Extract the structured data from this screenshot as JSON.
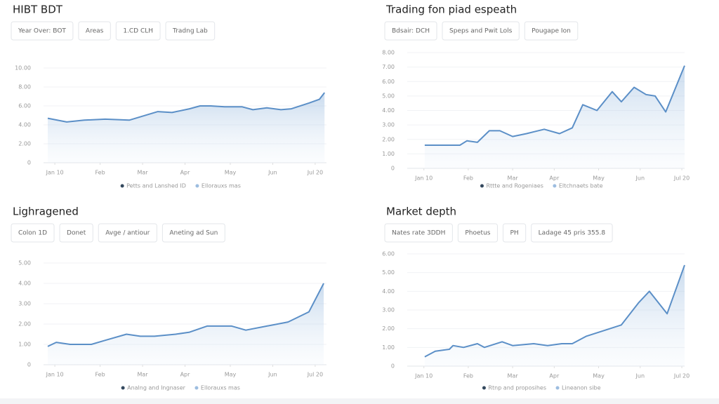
{
  "chart_data": [
    {
      "type": "line",
      "title": "HIBT BDT",
      "controls": [
        "Year Over: BOT",
        "Areas",
        "1.CD CLH",
        "Tradng Lab"
      ],
      "legend": [
        "Petts and Lanshed ID",
        "Ellorauxs mas"
      ],
      "series": [
        {
          "name": "Petts and Lanshed ID",
          "color": "#5b8fc7",
          "x": [
            1.5,
            8.2,
            14.4,
            21.8,
            30.3,
            40.4,
            45.4,
            51.6,
            55.3,
            59.1,
            64,
            70.2,
            74,
            78.9,
            83.9,
            87.6,
            93.8,
            97.5,
            99.3
          ],
          "values": [
            4.7,
            4.3,
            4.5,
            4.6,
            4.5,
            5.4,
            5.3,
            5.7,
            6.0,
            6.0,
            5.9,
            5.9,
            5.6,
            5.8,
            5.6,
            5.7,
            6.3,
            6.7,
            7.4
          ]
        }
      ],
      "xlim": [
        0,
        100
      ],
      "xticks": [
        {
          "value": 4,
          "label": "Jan 10"
        },
        {
          "value": 20,
          "label": "Feb"
        },
        {
          "value": 35,
          "label": "Mar"
        },
        {
          "value": 50,
          "label": "Apr"
        },
        {
          "value": 66,
          "label": "May"
        },
        {
          "value": 81,
          "label": "Jun"
        },
        {
          "value": 96,
          "label": "Jul 20"
        }
      ],
      "ylim": [
        0,
        10
      ],
      "yticks": [
        0,
        {
          "value": 2,
          "label": "2.00"
        },
        {
          "value": 4,
          "label": "4.00"
        },
        {
          "value": 6,
          "label": "6.00"
        },
        {
          "value": 8,
          "label": "8.00"
        },
        {
          "value": 10,
          "label": "10.00"
        }
      ],
      "grid": true
    },
    {
      "type": "line",
      "title": "Trading fon piad espeath",
      "controls": [
        "Bdsair: DCH",
        "Speps and Pwit Lols",
        "Pougape Ion"
      ],
      "legend": [
        "Rttte and Rogeniaes",
        "Eltchnaets bate"
      ],
      "series": [
        {
          "name": "Rttte and Rogeniaes",
          "color": "#5b8fc7",
          "x": [
            6.3,
            19,
            21.5,
            25.3,
            29.6,
            33.4,
            38,
            43,
            49.4,
            54.9,
            59.5,
            63.3,
            68.4,
            73.9,
            77.2,
            81.8,
            86.1,
            89.4,
            93.2,
            100
          ],
          "values": [
            1.6,
            1.6,
            1.9,
            1.8,
            2.6,
            2.6,
            2.2,
            2.4,
            2.7,
            2.4,
            2.8,
            4.4,
            4.0,
            5.3,
            4.6,
            5.6,
            5.1,
            5.0,
            3.9,
            7.1
          ]
        }
      ],
      "xlim": [
        0,
        100
      ],
      "xticks": [
        {
          "value": 6,
          "label": "Jan 10"
        },
        {
          "value": 22,
          "label": "Feb"
        },
        {
          "value": 38,
          "label": "Mar"
        },
        {
          "value": 53,
          "label": "Apr"
        },
        {
          "value": 69,
          "label": "May"
        },
        {
          "value": 84,
          "label": "Jun"
        },
        {
          "value": 99,
          "label": "Jul 20"
        }
      ],
      "ylim": [
        0,
        8
      ],
      "yticks": [
        0,
        {
          "value": 1,
          "label": "1.00"
        },
        {
          "value": 2,
          "label": "2.00"
        },
        {
          "value": 3,
          "label": "3.00"
        },
        {
          "value": 4,
          "label": "4.00"
        },
        {
          "value": 5,
          "label": "5.00"
        },
        {
          "value": 6,
          "label": "6.00"
        },
        {
          "value": 7,
          "label": "7.00"
        },
        {
          "value": 8,
          "label": "8.00"
        }
      ],
      "grid": true
    },
    {
      "type": "line",
      "title": "Lighragened",
      "controls": [
        "Colon 1D",
        "Donet",
        "Avge / antiour",
        "Aneting ad Sun"
      ],
      "legend": [
        "Analng and Ingnaser",
        "Ellorauxs mas"
      ],
      "series": [
        {
          "name": "Analng and Ingnaser",
          "color": "#5b8fc7",
          "x": [
            1.5,
            4.5,
            9.4,
            16.9,
            21.8,
            29.3,
            34.2,
            39.2,
            46.7,
            51.6,
            57.8,
            66.5,
            71.5,
            78.9,
            86.4,
            93.8,
            99
          ],
          "values": [
            0.9,
            1.1,
            1.0,
            1.0,
            1.2,
            1.5,
            1.4,
            1.4,
            1.5,
            1.6,
            1.9,
            1.9,
            1.7,
            1.9,
            2.1,
            2.6,
            4.0
          ]
        }
      ],
      "xlim": [
        0,
        100
      ],
      "xticks": [
        {
          "value": 4,
          "label": "Jan 10"
        },
        {
          "value": 20,
          "label": "Feb"
        },
        {
          "value": 35,
          "label": "Mar"
        },
        {
          "value": 50,
          "label": "Apr"
        },
        {
          "value": 66,
          "label": "May"
        },
        {
          "value": 81,
          "label": "Jun"
        },
        {
          "value": 96,
          "label": "Jul 20"
        }
      ],
      "ylim": [
        0,
        5
      ],
      "yticks": [
        0,
        {
          "value": 1,
          "label": "1.00"
        },
        {
          "value": 2,
          "label": "2.00"
        },
        {
          "value": 3,
          "label": "3.00"
        },
        {
          "value": 4,
          "label": "4.00"
        },
        {
          "value": 5,
          "label": "5.00"
        }
      ],
      "grid": true
    },
    {
      "type": "line",
      "title": "Market depth",
      "controls": [
        "Nates rate 3DDH",
        "Phoetus",
        "PH",
        "Ladage 45 pris 355.8"
      ],
      "legend": [
        "Rtnp and proposihes",
        "Lineanon sibe"
      ],
      "series": [
        {
          "name": "Rtnp and proposihes",
          "color": "#5b8fc7",
          "x": [
            6.3,
            10.1,
            15.2,
            16.5,
            20.3,
            25.3,
            27.8,
            34.2,
            38,
            45.6,
            50.6,
            55.7,
            59.5,
            64.6,
            70.9,
            77.2,
            83.5,
            87.3,
            93.7,
            100
          ],
          "values": [
            0.5,
            0.8,
            0.9,
            1.1,
            1.0,
            1.2,
            1.0,
            1.3,
            1.1,
            1.2,
            1.1,
            1.2,
            1.2,
            1.6,
            1.9,
            2.2,
            3.4,
            4.0,
            2.8,
            5.4
          ]
        }
      ],
      "xlim": [
        0,
        100
      ],
      "xticks": [
        {
          "value": 6,
          "label": "Jan 10"
        },
        {
          "value": 22,
          "label": "Feb"
        },
        {
          "value": 38,
          "label": "Mar"
        },
        {
          "value": 53,
          "label": "Apr"
        },
        {
          "value": 69,
          "label": "May"
        },
        {
          "value": 84,
          "label": "Jun"
        },
        {
          "value": 99,
          "label": "Jul 20"
        }
      ],
      "ylim": [
        0,
        6
      ],
      "yticks": [
        0,
        {
          "value": 1,
          "label": "1.00"
        },
        {
          "value": 2,
          "label": "2.00"
        },
        {
          "value": 3,
          "label": "3.00"
        },
        {
          "value": 4,
          "label": "4.00"
        },
        {
          "value": 5,
          "label": "5.00"
        },
        {
          "value": 6,
          "label": "6.00"
        }
      ],
      "grid": true
    }
  ]
}
